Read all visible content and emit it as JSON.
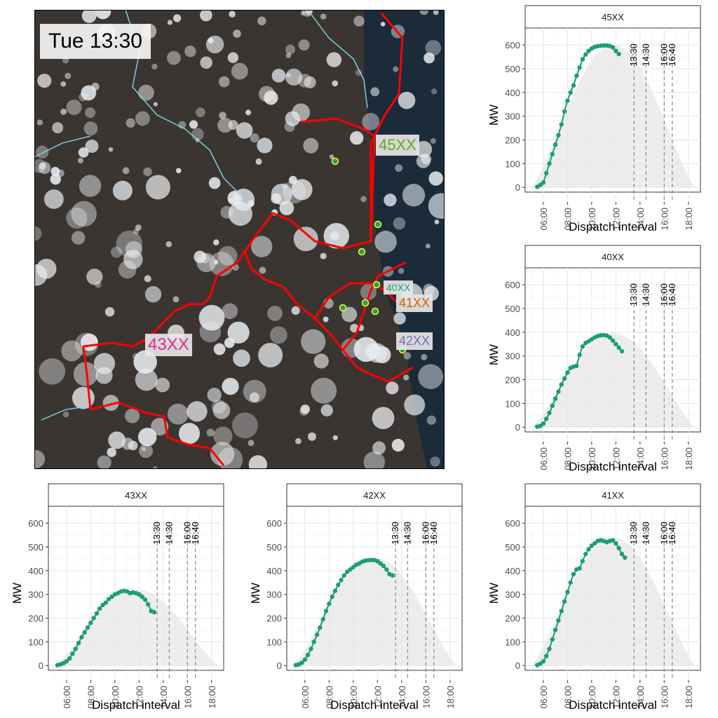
{
  "map": {
    "time_label": "Tue 13:30",
    "regions": [
      {
        "code": "45XX",
        "color": "#66a61e"
      },
      {
        "code": "40XX",
        "color": "#1b9e77"
      },
      {
        "code": "41XX",
        "color": "#d95f02"
      },
      {
        "code": "42XX",
        "color": "#7570b3"
      },
      {
        "code": "43XX",
        "color": "#e7298a"
      }
    ],
    "boundary_color": "#ff0000",
    "river_color": "#7fd6e6",
    "site_marker_color": "#1b9e77"
  },
  "chart_data": [
    {
      "type": "line",
      "facet": "45XX",
      "xlabel": "Dispatch interval",
      "ylabel": "MW",
      "x_ticks": [
        "06:00",
        "08:00",
        "10:00",
        "12:00",
        "14:00",
        "16:00",
        "18:00"
      ],
      "xlim_hours": [
        4.5,
        19
      ],
      "ylim": [
        -20,
        630
      ],
      "y_ticks": [
        0,
        100,
        200,
        300,
        400,
        500,
        600
      ],
      "vlines": [
        "13:30",
        "14:30",
        "16:00",
        "16:40"
      ],
      "peak_background": 600,
      "series": [
        {
          "x_start_hour": 5.5,
          "step_minutes": 15,
          "values": [
            2,
            10,
            20,
            60,
            100,
            140,
            180,
            220,
            265,
            320,
            365,
            400,
            430,
            470,
            505,
            540,
            560,
            575,
            585,
            592,
            595,
            597,
            598,
            598,
            596,
            590,
            575,
            562
          ]
        }
      ]
    },
    {
      "type": "line",
      "facet": "40XX",
      "xlabel": "Dispatch interval",
      "ylabel": "MW",
      "x_ticks": [
        "06:00",
        "08:00",
        "10:00",
        "12:00",
        "14:00",
        "16:00",
        "18:00"
      ],
      "xlim_hours": [
        4.5,
        19
      ],
      "ylim": [
        -20,
        630
      ],
      "y_ticks": [
        0,
        100,
        200,
        300,
        400,
        500,
        600
      ],
      "vlines": [
        "13:30",
        "14:30",
        "16:00",
        "16:40"
      ],
      "peak_background": 395,
      "series": [
        {
          "x_start_hour": 5.5,
          "step_minutes": 15,
          "values": [
            2,
            5,
            15,
            35,
            60,
            90,
            120,
            150,
            180,
            205,
            230,
            250,
            255,
            258,
            305,
            340,
            355,
            362,
            370,
            378,
            384,
            387,
            388,
            386,
            378,
            365,
            350,
            335,
            320
          ]
        }
      ]
    },
    {
      "type": "line",
      "facet": "43XX",
      "xlabel": "Dispatch interval",
      "ylabel": "MW",
      "x_ticks": [
        "06:00",
        "08:00",
        "10:00",
        "12:00",
        "14:00",
        "16:00",
        "18:00"
      ],
      "xlim_hours": [
        4.5,
        19
      ],
      "ylim": [
        -20,
        630
      ],
      "y_ticks": [
        0,
        100,
        200,
        300,
        400,
        500,
        600
      ],
      "vlines": [
        "13:30",
        "14:30",
        "16:00",
        "16:40"
      ],
      "peak_background": 320,
      "series": [
        {
          "x_start_hour": 5.25,
          "step_minutes": 15,
          "values": [
            2,
            5,
            10,
            18,
            30,
            50,
            70,
            95,
            120,
            140,
            160,
            180,
            200,
            220,
            240,
            255,
            265,
            280,
            290,
            300,
            305,
            312,
            315,
            313,
            305,
            308,
            305,
            300,
            290,
            278,
            258,
            230,
            225
          ]
        }
      ]
    },
    {
      "type": "line",
      "facet": "42XX",
      "xlabel": "Dispatch interval",
      "ylabel": "MW",
      "x_ticks": [
        "06:00",
        "08:00",
        "10:00",
        "12:00",
        "14:00",
        "16:00",
        "18:00"
      ],
      "xlim_hours": [
        4.5,
        19
      ],
      "ylim": [
        -20,
        630
      ],
      "y_ticks": [
        0,
        100,
        200,
        300,
        400,
        500,
        600
      ],
      "vlines": [
        "13:30",
        "14:30",
        "16:00",
        "16:40"
      ],
      "peak_background": 455,
      "series": [
        {
          "x_start_hour": 5.25,
          "step_minutes": 15,
          "values": [
            2,
            5,
            12,
            25,
            45,
            70,
            100,
            130,
            160,
            195,
            230,
            260,
            290,
            315,
            340,
            360,
            380,
            395,
            405,
            415,
            425,
            430,
            438,
            442,
            444,
            445,
            444,
            440,
            430,
            420,
            405,
            385,
            380
          ]
        }
      ]
    },
    {
      "type": "line",
      "facet": "41XX",
      "xlabel": "Dispatch interval",
      "ylabel": "MW",
      "x_ticks": [
        "06:00",
        "08:00",
        "10:00",
        "12:00",
        "14:00",
        "16:00",
        "18:00"
      ],
      "xlim_hours": [
        4.5,
        19
      ],
      "ylim": [
        -20,
        630
      ],
      "y_ticks": [
        0,
        100,
        200,
        300,
        400,
        500,
        600
      ],
      "vlines": [
        "13:30",
        "14:30",
        "16:00",
        "16:40"
      ],
      "peak_background": 540,
      "series": [
        {
          "x_start_hour": 5.5,
          "step_minutes": 15,
          "values": [
            2,
            8,
            18,
            40,
            70,
            110,
            150,
            190,
            230,
            270,
            310,
            350,
            385,
            405,
            410,
            440,
            470,
            490,
            505,
            515,
            525,
            528,
            525,
            520,
            525,
            528,
            515,
            495,
            470,
            455
          ]
        }
      ]
    }
  ]
}
